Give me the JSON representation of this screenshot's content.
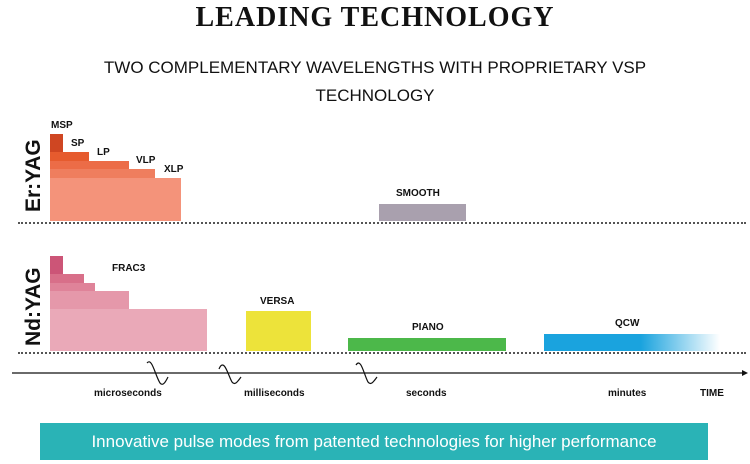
{
  "title": "LEADING TECHNOLOGY",
  "subtitle": "TWO COMPLEMENTARY WAVELENGTHS WITH PROPRIETARY VSP TECHNOLOGY",
  "rows": {
    "er": "Er:YAG",
    "nd": "Nd:YAG"
  },
  "er_modes": [
    "MSP",
    "SP",
    "LP",
    "VLP",
    "XLP"
  ],
  "smooth": "SMOOTH",
  "frac3": "FRAC3",
  "versa": "VERSA",
  "piano": "PIANO",
  "qcw": "QCW",
  "time_axis": [
    "microseconds",
    "milliseconds",
    "seconds",
    "minutes"
  ],
  "time_label": "TIME",
  "banner": "Innovative pulse modes from patented technologies for higher performance",
  "colors": {
    "er": "#f08a6c",
    "nd": "#e9a3b4",
    "smooth": "#a9a0ae",
    "versa": "#ede33a",
    "piano": "#4cb84a",
    "qcw": "#1aa3de",
    "banner": "#2ab3b6"
  }
}
